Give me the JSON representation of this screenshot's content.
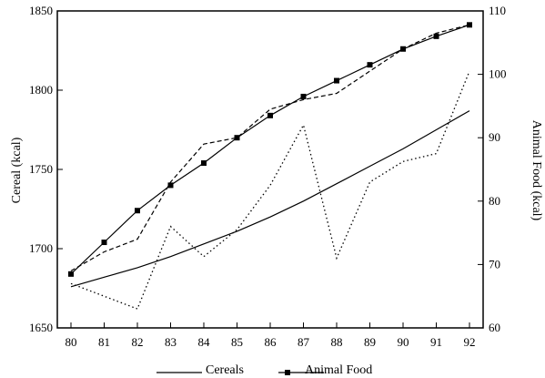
{
  "chart_data": {
    "type": "line",
    "x": [
      80,
      81,
      82,
      83,
      84,
      85,
      86,
      87,
      88,
      89,
      90,
      91,
      92
    ],
    "x_tick_labels": [
      "80",
      "81",
      "82",
      "83",
      "84",
      "85",
      "86",
      "87",
      "88",
      "89",
      "90",
      "91",
      "92"
    ],
    "y_left": {
      "label": "Cereal (kcal)",
      "lim": [
        1650,
        1850
      ],
      "ticks": [
        1650,
        1700,
        1750,
        1800,
        1850
      ],
      "tick_labels": [
        "1650",
        "1700",
        "1750",
        "1800",
        "1850"
      ]
    },
    "y_right": {
      "label": "Animal Food (kcal)",
      "lim": [
        60,
        110
      ],
      "ticks": [
        60,
        70,
        80,
        90,
        100,
        110
      ],
      "tick_labels": [
        "60",
        "70",
        "80",
        "90",
        "100",
        "110"
      ]
    },
    "series": [
      {
        "name": "Cereals",
        "axis": "left",
        "style": "solid",
        "marker": "none",
        "values": [
          1676,
          1682,
          1688,
          1695,
          1703,
          1711,
          1720,
          1730,
          1741,
          1752,
          1763,
          1775,
          1787
        ]
      },
      {
        "name": "Animal Food",
        "axis": "right",
        "style": "solid",
        "marker": "square",
        "values": [
          68.5,
          73.5,
          78.5,
          82.5,
          86,
          90,
          93.5,
          96.5,
          99,
          101.5,
          104,
          106,
          107.8
        ]
      },
      {
        "axis": "left",
        "style": "dotted",
        "marker": "none",
        "values": [
          1678,
          1670,
          1662,
          1714,
          1695,
          1712,
          1740,
          1778,
          1694,
          1742,
          1755,
          1760,
          1812
        ]
      },
      {
        "axis": "right",
        "style": "dashed",
        "marker": "none",
        "values": [
          69,
          72,
          74,
          83,
          89,
          90,
          94.5,
          96,
          97,
          100.5,
          104,
          106.5,
          107.8
        ]
      }
    ],
    "legend": {
      "position": "bottom",
      "entries": [
        "Cereals",
        "Animal Food"
      ]
    },
    "grid": false
  }
}
